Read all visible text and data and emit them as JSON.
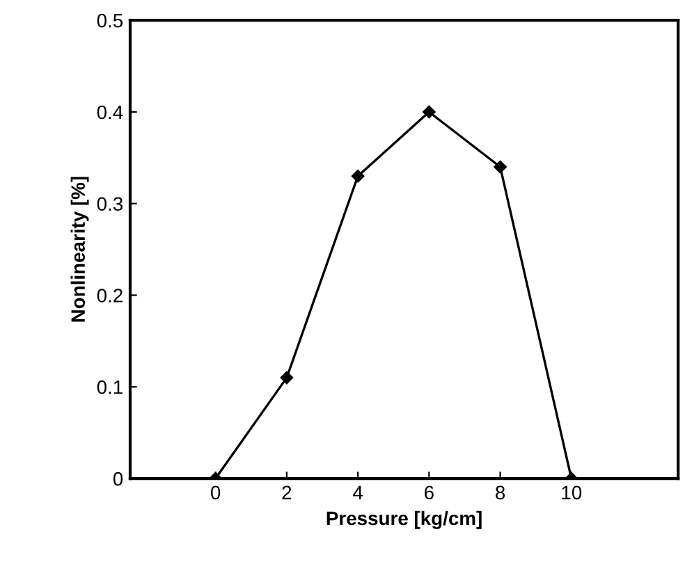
{
  "chart_data": {
    "type": "line",
    "xlabel": "Pressure [kg/cm]",
    "ylabel": "Nonlinearity [%]",
    "x": [
      0,
      2,
      4,
      6,
      8,
      10
    ],
    "series": [
      {
        "color": "#000000",
        "values": [
          0,
          0.11,
          0.33,
          0.4,
          0.34,
          0
        ]
      }
    ],
    "xlim": [
      -2.4,
      13
    ],
    "xticks": [
      0,
      2,
      4,
      6,
      8,
      10
    ],
    "ylim": [
      0,
      0.5
    ],
    "yticks": [
      {
        "value": 0,
        "label": "0"
      },
      {
        "value": 0.1,
        "label": "0.1"
      },
      {
        "value": 0.2,
        "label": "0.2"
      },
      {
        "value": 0.3,
        "label": "0.3"
      },
      {
        "value": 0.4,
        "label": "0.4"
      },
      {
        "value": 0.5,
        "label": "0.5"
      }
    ],
    "marker": "diamond",
    "line_style": "solid",
    "grid": false,
    "legend": false
  }
}
